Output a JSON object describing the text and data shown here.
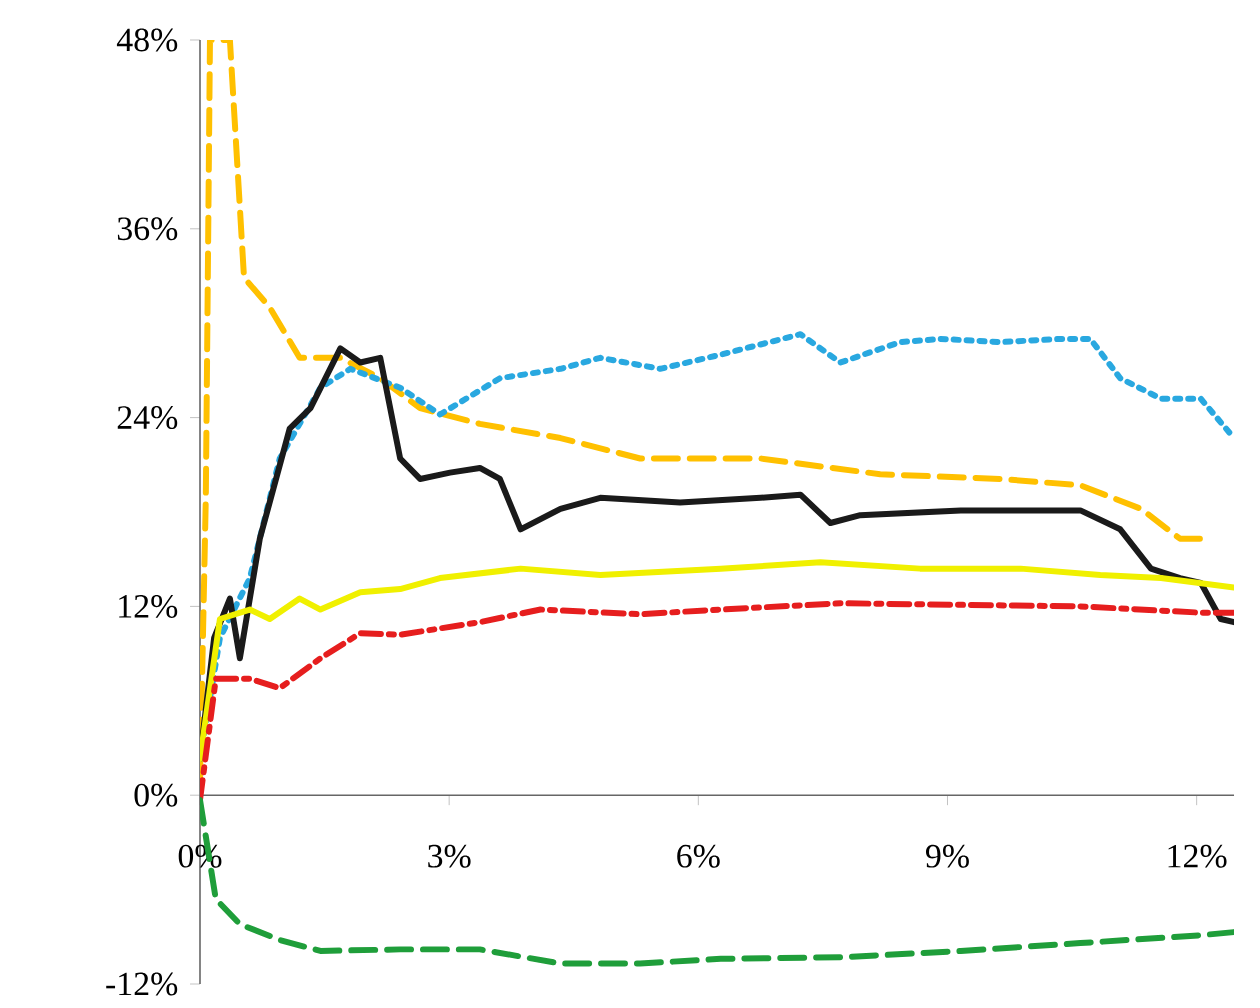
{
  "chart_data": {
    "type": "line",
    "xlim": [
      0,
      12.45
    ],
    "ylim": [
      -12,
      48
    ],
    "xticks": [
      {
        "value": 0,
        "label": "0%"
      },
      {
        "value": 3,
        "label": "3%"
      },
      {
        "value": 6,
        "label": "6%"
      },
      {
        "value": 9,
        "label": "9%"
      },
      {
        "value": 12,
        "label": "12%"
      }
    ],
    "yticks": [
      {
        "value": -12,
        "label": "-12%"
      },
      {
        "value": 0,
        "label": "0%"
      },
      {
        "value": 12,
        "label": "12%"
      },
      {
        "value": 24,
        "label": "24%"
      },
      {
        "value": 36,
        "label": "36%"
      },
      {
        "value": 48,
        "label": "48%"
      }
    ],
    "series": [
      {
        "color": "#ffc000",
        "line_style": "dashed",
        "x": [
          0,
          0.07,
          0.12,
          0.36,
          0.53,
          0.84,
          1.2,
          1.69,
          2.17,
          2.65,
          3.37,
          4.34,
          5.3,
          6.75,
          8.19,
          9.64,
          10.6,
          11.33,
          11.8,
          12.05
        ],
        "values": [
          1,
          18.9,
          48,
          48,
          32.9,
          31,
          27.8,
          27.8,
          26.5,
          24.6,
          23.6,
          22.7,
          21.4,
          21.4,
          20.4,
          20.1,
          19.7,
          18.2,
          16.3,
          16.3
        ]
      },
      {
        "color": "#29a8e0",
        "line_style": "dotted",
        "x": [
          0,
          0.24,
          0.6,
          0.96,
          1.45,
          1.81,
          2.41,
          2.89,
          3.61,
          4.34,
          4.82,
          5.54,
          6.27,
          7.23,
          7.71,
          8.43,
          8.92,
          9.64,
          10.36,
          10.72,
          11.08,
          11.57,
          12.05,
          12.45
        ],
        "values": [
          2.3,
          10,
          13.8,
          21.4,
          25.9,
          27.1,
          25.9,
          24.2,
          26.5,
          27.1,
          27.8,
          27.1,
          28,
          29.3,
          27.5,
          28.8,
          29,
          28.8,
          29,
          29,
          26.5,
          25.2,
          25.2,
          22.7
        ]
      },
      {
        "color": "#1a1a1a",
        "line_style": "solid",
        "x": [
          0,
          0.17,
          0.36,
          0.48,
          0.72,
          1.08,
          1.33,
          1.69,
          1.93,
          2.17,
          2.41,
          2.65,
          3.01,
          3.37,
          3.61,
          3.86,
          4.34,
          4.82,
          5.78,
          6.75,
          7.23,
          7.59,
          7.95,
          9.16,
          10.6,
          11.08,
          11.45,
          11.8,
          12.05,
          12.29,
          12.45
        ],
        "values": [
          2.3,
          10,
          12.5,
          8.7,
          16.3,
          23.3,
          24.6,
          28.4,
          27.5,
          27.8,
          21.4,
          20.1,
          20.5,
          20.8,
          20.1,
          16.9,
          18.2,
          18.9,
          18.6,
          18.9,
          19.1,
          17.3,
          17.8,
          18.1,
          18.1,
          16.9,
          14.4,
          13.8,
          13.5,
          11.2,
          11
        ]
      },
      {
        "color": "#f0f000",
        "line_style": "solid",
        "x": [
          0,
          0.24,
          0.6,
          0.84,
          1.2,
          1.45,
          1.93,
          2.41,
          2.89,
          3.86,
          4.82,
          6.27,
          7.47,
          8.67,
          9.88,
          10.84,
          11.57,
          12.45
        ],
        "values": [
          2.3,
          11.2,
          11.8,
          11.2,
          12.5,
          11.8,
          12.9,
          13.1,
          13.8,
          14.4,
          14,
          14.4,
          14.8,
          14.4,
          14.4,
          14,
          13.8,
          13.2
        ]
      },
      {
        "color": "#e61e1e",
        "line_style": "dashdot",
        "x": [
          0,
          0.19,
          0.6,
          0.96,
          1.45,
          1.93,
          2.41,
          3.37,
          4.1,
          5.3,
          6.27,
          7.71,
          9.16,
          10.6,
          12.05,
          12.45
        ],
        "values": [
          -0.3,
          7.4,
          7.4,
          6.8,
          8.7,
          10.3,
          10.2,
          11,
          11.8,
          11.5,
          11.8,
          12.2,
          12.1,
          12,
          11.6,
          11.6
        ]
      },
      {
        "color": "#1f9e3a",
        "line_style": "dashed",
        "x": [
          0,
          0.19,
          0.48,
          0.96,
          1.45,
          2.41,
          3.37,
          4.34,
          5.3,
          6.27,
          7.71,
          9.16,
          10.6,
          12.05,
          12.45
        ],
        "values": [
          -0.3,
          -6.6,
          -8.2,
          -9.2,
          -9.9,
          -9.8,
          -9.8,
          -10.7,
          -10.7,
          -10.4,
          -10.3,
          -9.9,
          -9.4,
          -8.9,
          -8.7
        ]
      }
    ]
  }
}
